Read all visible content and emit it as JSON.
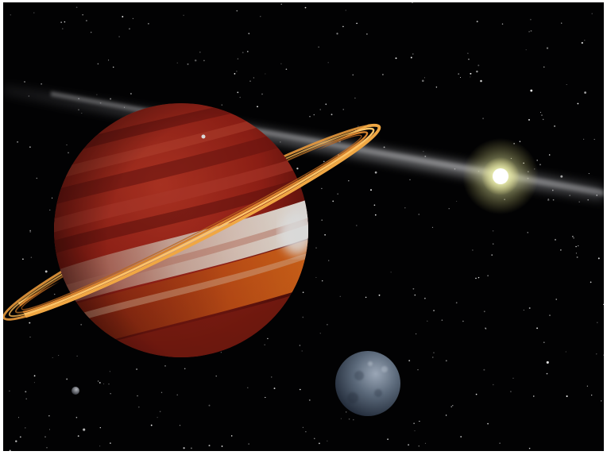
{
  "scene": {
    "background_color": "#020203",
    "frame_color": "#ffffff",
    "objects": [
      "star-field",
      "dust-disk-band",
      "host-star",
      "ringed-red-gas-giant",
      "planetary-ring",
      "icy-moon",
      "small-distant-moon",
      "tiny-moon-near-planet-top"
    ],
    "colors": {
      "planet_red": "#b8251b",
      "planet_light_band": "#f2ddcb",
      "planet_orange": "#e2661c",
      "ring_gold": "#f0a743",
      "star_glow": "#f4f6b8",
      "moon_blue_gray": "#4c5a6d"
    }
  }
}
